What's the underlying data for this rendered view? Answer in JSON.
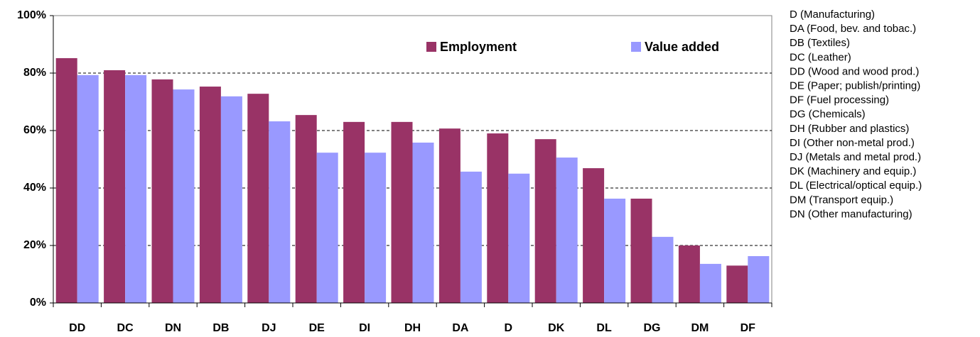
{
  "chart_data": {
    "type": "bar",
    "categories": [
      "DD",
      "DC",
      "DN",
      "DB",
      "DJ",
      "DE",
      "DI",
      "DH",
      "DA",
      "D",
      "DK",
      "DL",
      "DG",
      "DM",
      "DF"
    ],
    "series": [
      {
        "name": "Employment",
        "color": "#993366",
        "values": [
          85.2,
          81,
          77.8,
          75.3,
          72.8,
          65.4,
          63,
          63,
          60.7,
          59,
          57,
          46.9,
          36.3,
          20,
          13
        ]
      },
      {
        "name": "Value added",
        "color": "#9999ff",
        "values": [
          79.3,
          79.3,
          74.3,
          71.9,
          63.2,
          52.3,
          52.3,
          55.8,
          45.7,
          45,
          50.6,
          36.3,
          23,
          13.6,
          16.3
        ]
      }
    ],
    "ylim": [
      0,
      100
    ],
    "yticks": [
      {
        "value": 0,
        "label": "0%"
      },
      {
        "value": 20,
        "label": "20%"
      },
      {
        "value": 40,
        "label": "40%"
      },
      {
        "value": 60,
        "label": "60%"
      },
      {
        "value": 80,
        "label": "80%"
      },
      {
        "value": 100,
        "label": "100%"
      }
    ],
    "grid": true,
    "legend": "top",
    "annotations": [
      "D (Manufacturing)",
      "DA (Food, bev. and tobac.)",
      "DB (Textiles)",
      "DC (Leather)",
      "DD (Wood and wood prod.)",
      "DE (Paper; publish/printing)",
      "DF (Fuel processing)",
      "DG (Chemicals)",
      "DH (Rubber and plastics)",
      "DI  (Other non-metal prod.)",
      "DJ (Metals and metal prod.)",
      "DK (Machinery and equip.)",
      "DL (Electrical/optical equip.)",
      "DM (Transport equip.)",
      "DN (Other manufacturing)"
    ]
  }
}
